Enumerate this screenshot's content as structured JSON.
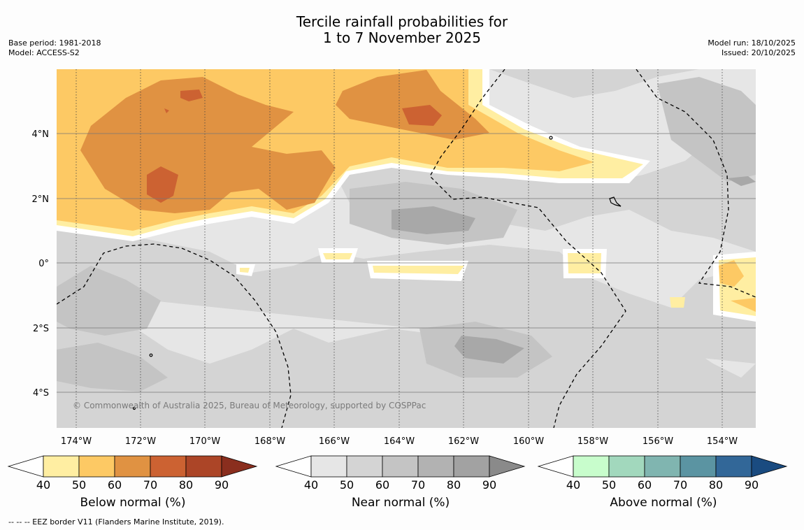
{
  "title": {
    "line1": "Tercile rainfall probabilities for",
    "line2": "1 to 7 November 2025"
  },
  "meta_left": {
    "base_period": "Base period: 1981-2018",
    "model": "Model: ACCESS-S2"
  },
  "meta_right": {
    "model_run": "Model run: 18/10/2025",
    "issued": "Issued: 20/10/2025"
  },
  "map": {
    "lon_ticks": [
      "174°W",
      "172°W",
      "170°W",
      "168°W",
      "166°W",
      "164°W",
      "162°W",
      "160°W",
      "158°W",
      "156°W",
      "154°W"
    ],
    "lat_ticks": [
      "4°N",
      "2°N",
      "0°",
      "2°S",
      "4°S"
    ],
    "copyright": "© Commonwealth of Australia 2025, Bureau of Meteorology, supported by COSPPac"
  },
  "colorbars": [
    {
      "label": "Below normal (%)",
      "ticks": [
        "40",
        "50",
        "60",
        "70",
        "80",
        "90"
      ],
      "colors": [
        "#ffeea2",
        "#fdc964",
        "#e09242",
        "#cc6232",
        "#ac4527",
        "#8a2e1e"
      ]
    },
    {
      "label": "Near normal (%)",
      "ticks": [
        "40",
        "50",
        "60",
        "70",
        "80",
        "90"
      ],
      "colors": [
        "#e6e6e6",
        "#d4d4d4",
        "#c4c4c4",
        "#b2b2b2",
        "#a2a2a2",
        "#8a8a8a"
      ]
    },
    {
      "label": "Above normal (%)",
      "ticks": [
        "40",
        "50",
        "60",
        "70",
        "80",
        "90"
      ],
      "colors": [
        "#c8fdcc",
        "#a2d8bd",
        "#80b5b0",
        "#5b94a2",
        "#326798",
        "#1a4b80"
      ]
    }
  ],
  "footnote": "--  --  -- EEZ border V11 (Flanders Marine Institute, 2019)."
}
